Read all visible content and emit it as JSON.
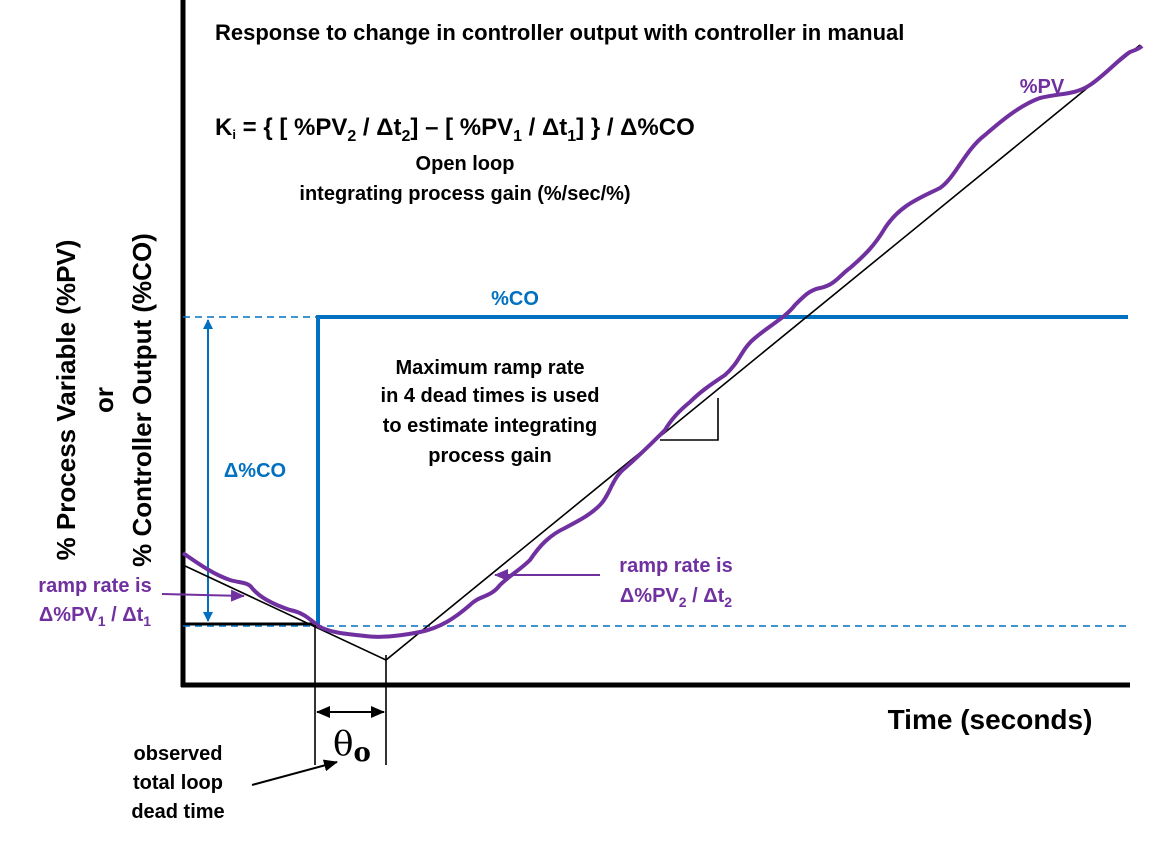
{
  "title": "Response to change in controller output with controller in manual",
  "formula": {
    "k": "K",
    "k_sub": "i",
    "eq": " =  { [ %PV",
    "s2": "2",
    "mid1": " / Δt",
    "s2b": "2",
    "mid2": "] – [ %PV",
    "s1": "1",
    "mid3": " / Δt",
    "s1b": "1",
    "end": "] } / Δ%CO"
  },
  "formula_caption": [
    "Open loop",
    "integrating process gain (%/sec/%)"
  ],
  "y_axis_label": [
    "% Process Variable (%PV)",
    "or",
    "% Controller Output (%CO)"
  ],
  "x_axis_label": "Time (seconds)",
  "co_label": "%CO",
  "pv_label": "%PV",
  "delta_co_label": "Δ%CO",
  "max_ramp_note": [
    "Maximum ramp rate",
    "in 4 dead times is used",
    "to estimate integrating",
    "process gain"
  ],
  "ramp1": {
    "line1": "ramp rate is",
    "a": "Δ%PV",
    "s": "1",
    "b": " / Δt",
    "s2": "1"
  },
  "ramp2": {
    "line1": "ramp rate is",
    "a": "Δ%PV",
    "s": "2",
    "b": " / Δt",
    "s2": "2"
  },
  "dead_time_symbol": {
    "theta": "θ",
    "sub": "o"
  },
  "dead_time_note": [
    "observed",
    "total loop",
    "dead time"
  ],
  "colors": {
    "pv": "#7030a0",
    "co": "#0070c0",
    "axis": "#000000"
  }
}
